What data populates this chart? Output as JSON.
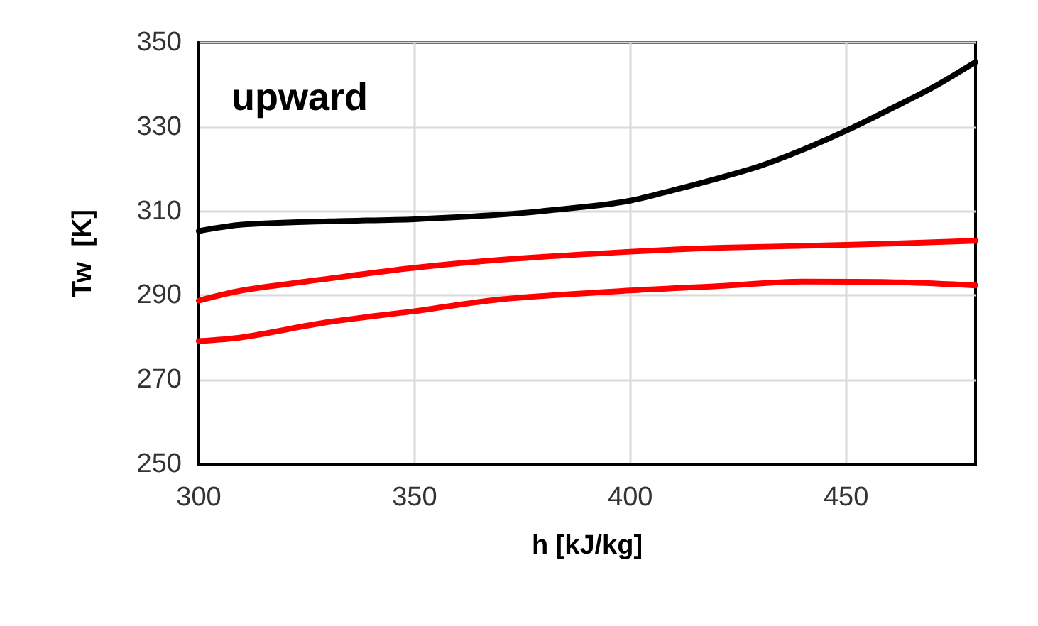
{
  "chart_data": {
    "type": "line",
    "xlabel": "h [kJ/kg]",
    "ylabel": "Tw  [K]",
    "annotations": [
      "upward"
    ],
    "xlim": [
      300,
      480
    ],
    "xticks": [
      300,
      350,
      400,
      450
    ],
    "ylim": [
      250,
      350
    ],
    "yticks": [
      250,
      270,
      290,
      310,
      330,
      350
    ],
    "grid": true,
    "marker": "none",
    "line_style": "solid",
    "series": [
      {
        "color": "#000000",
        "x": [
          300,
          310,
          330,
          350,
          370,
          390,
          400,
          410,
          420,
          430,
          440,
          450,
          460,
          470,
          480
        ],
        "values": [
          305.3,
          306.8,
          307.6,
          308.1,
          309.2,
          311.1,
          312.5,
          315,
          317.7,
          320.7,
          324.6,
          329.1,
          334.1,
          339.3,
          345.4
        ]
      },
      {
        "color": "#ff0000",
        "x": [
          300,
          310,
          330,
          350,
          370,
          400,
          420,
          450,
          480
        ],
        "values": [
          288.8,
          291.2,
          294,
          296.6,
          298.5,
          300.4,
          301.3,
          302,
          303
        ]
      },
      {
        "color": "#ff0000",
        "x": [
          300,
          310,
          330,
          350,
          370,
          400,
          420,
          440,
          460,
          480
        ],
        "values": [
          279.2,
          280.1,
          283.7,
          286.3,
          289.1,
          291.2,
          292.2,
          293.3,
          293.2,
          292.4
        ]
      }
    ]
  }
}
